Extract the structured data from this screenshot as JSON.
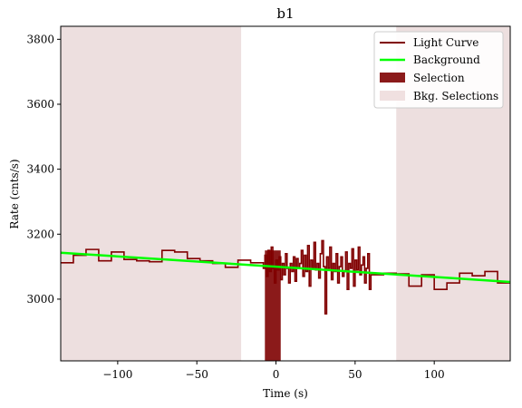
{
  "chart_data": {
    "type": "line",
    "title": "b1",
    "xlabel": "Time (s)",
    "ylabel": "Rate (cnts/s)",
    "xlim": [
      -136,
      148
    ],
    "ylim": [
      2810,
      3840
    ],
    "x_ticks": [
      -100,
      -50,
      0,
      50,
      100
    ],
    "x_tick_labels": [
      "−100",
      "−50",
      "0",
      "50",
      "100"
    ],
    "y_ticks": [
      3000,
      3200,
      3400,
      3600,
      3800
    ],
    "y_tick_labels": [
      "3000",
      "3200",
      "3400",
      "3600",
      "3800"
    ],
    "grid": false,
    "legend_position": "top-right",
    "legend": [
      {
        "label": "Light Curve",
        "kind": "line",
        "color": "#800000"
      },
      {
        "label": "Background",
        "kind": "line",
        "color": "#00ff00"
      },
      {
        "label": "Selection",
        "kind": "patch",
        "color": "#8b1a1a"
      },
      {
        "label": "Bkg. Selections",
        "kind": "patch",
        "color": "#f0e0e0"
      }
    ],
    "colors": {
      "light_curve": "#800000",
      "background": "#00ff00",
      "selection": "#8b1a1a",
      "bkg_selection": "#eddfdf"
    },
    "light_curve": {
      "bin_edges": [
        -136,
        -128,
        -120,
        -112,
        -104,
        -96,
        -88,
        -80,
        -72,
        -64,
        -56,
        -48,
        -40,
        -32,
        -24,
        -16,
        -8,
        -7.2,
        -6.4,
        -5.6,
        -4.8,
        -4,
        -3.2,
        -2.4,
        -1.6,
        -0.8,
        0,
        0.8,
        1.6,
        2.4,
        3.2,
        4,
        4.8,
        5.6,
        6.4,
        7.2,
        8,
        9,
        10,
        11,
        12,
        13,
        14,
        15,
        16,
        17,
        18,
        19,
        20,
        21,
        22,
        23,
        24,
        25,
        26,
        27,
        28,
        29,
        30,
        31,
        32,
        33,
        34,
        35,
        36,
        37,
        38,
        39,
        40,
        41,
        42,
        43,
        44,
        45,
        46,
        47,
        48,
        49,
        50,
        51,
        52,
        53,
        54,
        55,
        56,
        57,
        58,
        59,
        60,
        68,
        76,
        84,
        92,
        100,
        108,
        116,
        124,
        132,
        140,
        148
      ],
      "rates": [
        3112,
        3135,
        3153,
        3118,
        3145,
        3122,
        3118,
        3115,
        3150,
        3145,
        3125,
        3118,
        3110,
        3098,
        3120,
        3112,
        3095,
        3135,
        3070,
        3150,
        3085,
        3160,
        3095,
        3050,
        3120,
        3090,
        3130,
        3060,
        3110,
        3075,
        3140,
        3095,
        3050,
        3110,
        3085,
        3090,
        3130,
        3055,
        3125,
        3095,
        3110,
        3150,
        3070,
        3135,
        3085,
        3165,
        3040,
        3120,
        3095,
        3175,
        3090,
        3110,
        3065,
        3140,
        3180,
        3100,
        3020,
        3130,
        3095,
        3160,
        3060,
        3110,
        3085,
        3140,
        3050,
        3100,
        3130,
        3070,
        3085,
        3145,
        3065,
        3110,
        3095,
        3155,
        3040,
        3120,
        3090,
        3160,
        3075,
        3105,
        3130,
        3050,
        3095,
        3140,
        3070,
        3075,
        3080,
        3040,
        3075,
        3030,
        3050,
        3080,
        3072,
        3085,
        3050
      ],
      "step_path_points": [
        [
          -136,
          3112
        ],
        [
          -128,
          3135
        ],
        [
          -120,
          3153
        ],
        [
          -112,
          3118
        ],
        [
          -104,
          3145
        ],
        [
          -96,
          3122
        ],
        [
          -88,
          3118
        ],
        [
          -80,
          3115
        ],
        [
          -72,
          3150
        ],
        [
          -64,
          3145
        ],
        [
          -56,
          3125
        ],
        [
          -48,
          3118
        ],
        [
          -40,
          3110
        ],
        [
          -32,
          3098
        ],
        [
          -24,
          3120
        ],
        [
          -16,
          3112
        ],
        [
          -8,
          3095
        ],
        [
          -7,
          3135
        ],
        [
          -6,
          3070
        ],
        [
          -5,
          3150
        ],
        [
          -4,
          3085
        ],
        [
          -3,
          3160
        ],
        [
          -2,
          3095
        ],
        [
          -1,
          3050
        ],
        [
          0,
          3120
        ],
        [
          1,
          3090
        ],
        [
          2,
          3130
        ],
        [
          3,
          3060
        ],
        [
          4,
          3110
        ],
        [
          5,
          3075
        ],
        [
          6,
          3140
        ],
        [
          7,
          3095
        ],
        [
          8,
          3050
        ],
        [
          9,
          3110
        ],
        [
          10,
          3085
        ],
        [
          11,
          3130
        ],
        [
          12,
          3055
        ],
        [
          13,
          3125
        ],
        [
          14,
          3095
        ],
        [
          15,
          3110
        ],
        [
          16,
          3150
        ],
        [
          17,
          3070
        ],
        [
          18,
          3135
        ],
        [
          19,
          3085
        ],
        [
          20,
          3165
        ],
        [
          21,
          3040
        ],
        [
          22,
          3120
        ],
        [
          23,
          3095
        ],
        [
          24,
          3175
        ],
        [
          25,
          3090
        ],
        [
          26,
          3110
        ],
        [
          27,
          3065
        ],
        [
          28,
          3140
        ],
        [
          29,
          3180
        ],
        [
          30,
          3100
        ],
        [
          31,
          2955
        ],
        [
          32,
          3130
        ],
        [
          33,
          3095
        ],
        [
          34,
          3160
        ],
        [
          35,
          3060
        ],
        [
          36,
          3110
        ],
        [
          37,
          3085
        ],
        [
          38,
          3140
        ],
        [
          39,
          3050
        ],
        [
          40,
          3100
        ],
        [
          41,
          3130
        ],
        [
          42,
          3070
        ],
        [
          43,
          3085
        ],
        [
          44,
          3145
        ],
        [
          45,
          3030
        ],
        [
          46,
          3110
        ],
        [
          47,
          3095
        ],
        [
          48,
          3155
        ],
        [
          49,
          3040
        ],
        [
          50,
          3120
        ],
        [
          51,
          3090
        ],
        [
          52,
          3160
        ],
        [
          53,
          3075
        ],
        [
          54,
          3105
        ],
        [
          55,
          3130
        ],
        [
          56,
          3050
        ],
        [
          57,
          3095
        ],
        [
          58,
          3140
        ],
        [
          59,
          3030
        ],
        [
          60,
          3075
        ],
        [
          68,
          3080
        ],
        [
          76,
          3078
        ],
        [
          84,
          3040
        ],
        [
          92,
          3075
        ],
        [
          100,
          3030
        ],
        [
          108,
          3050
        ],
        [
          116,
          3080
        ],
        [
          124,
          3072
        ],
        [
          132,
          3085
        ],
        [
          140,
          3050
        ],
        [
          148,
          3050
        ]
      ]
    },
    "background_fit": {
      "x": [
        -136,
        148
      ],
      "y": [
        3143,
        3053
      ]
    },
    "selection": {
      "x_range": [
        -7,
        3
      ],
      "y_range": [
        2810,
        3150
      ]
    },
    "bkg_selections": [
      {
        "x_range": [
          -136,
          -22
        ]
      },
      {
        "x_range": [
          76,
          148
        ]
      }
    ]
  }
}
